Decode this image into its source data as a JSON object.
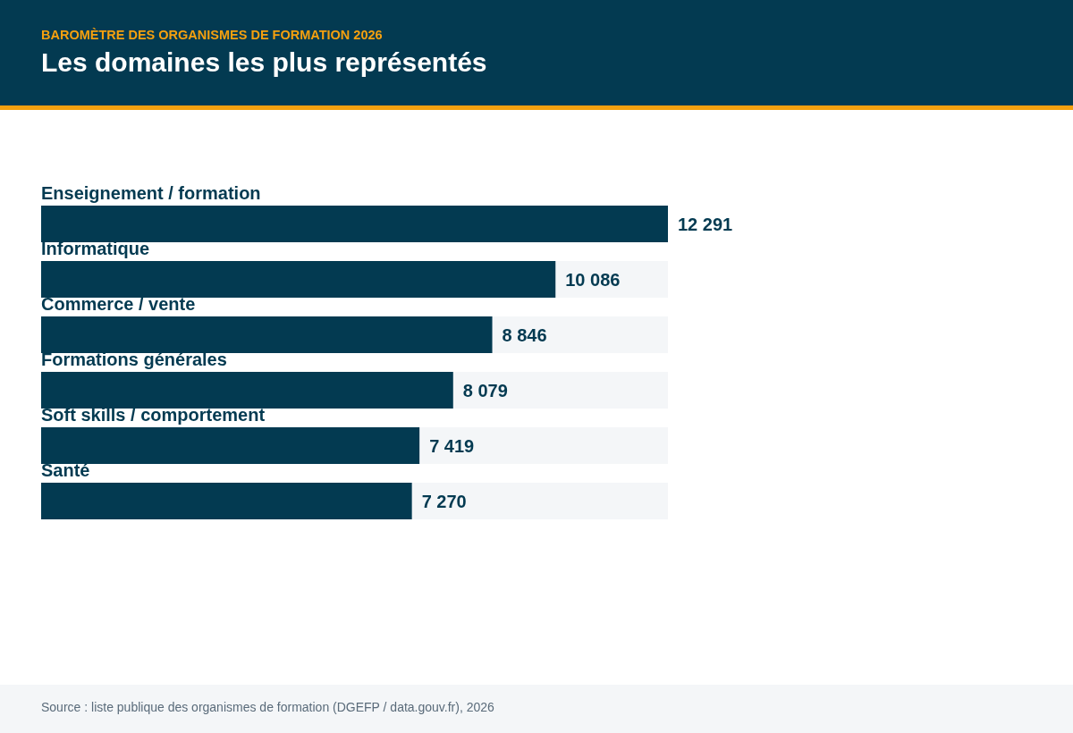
{
  "chart_data": {
    "type": "bar",
    "orientation": "horizontal",
    "subtitle": "BAROMÈTRE DES ORGANISMES DE FORMATION 2026",
    "title": "Les domaines les plus représentés",
    "categories": [
      "Enseignement / formation",
      "Informatique",
      "Commerce / vente",
      "Formations générales",
      "Soft skills / comportement",
      "Santé"
    ],
    "values": [
      12291,
      10086,
      8846,
      8079,
      7419,
      7270
    ],
    "color": "#033a51",
    "value_labels": [
      "12 291",
      "10 086",
      "8 846",
      "8 079",
      "7 419",
      "7 270"
    ],
    "annotations": [
      "Source : liste publique des organismes de formation (DGEFP / data.gouv.fr), 2026"
    ]
  }
}
